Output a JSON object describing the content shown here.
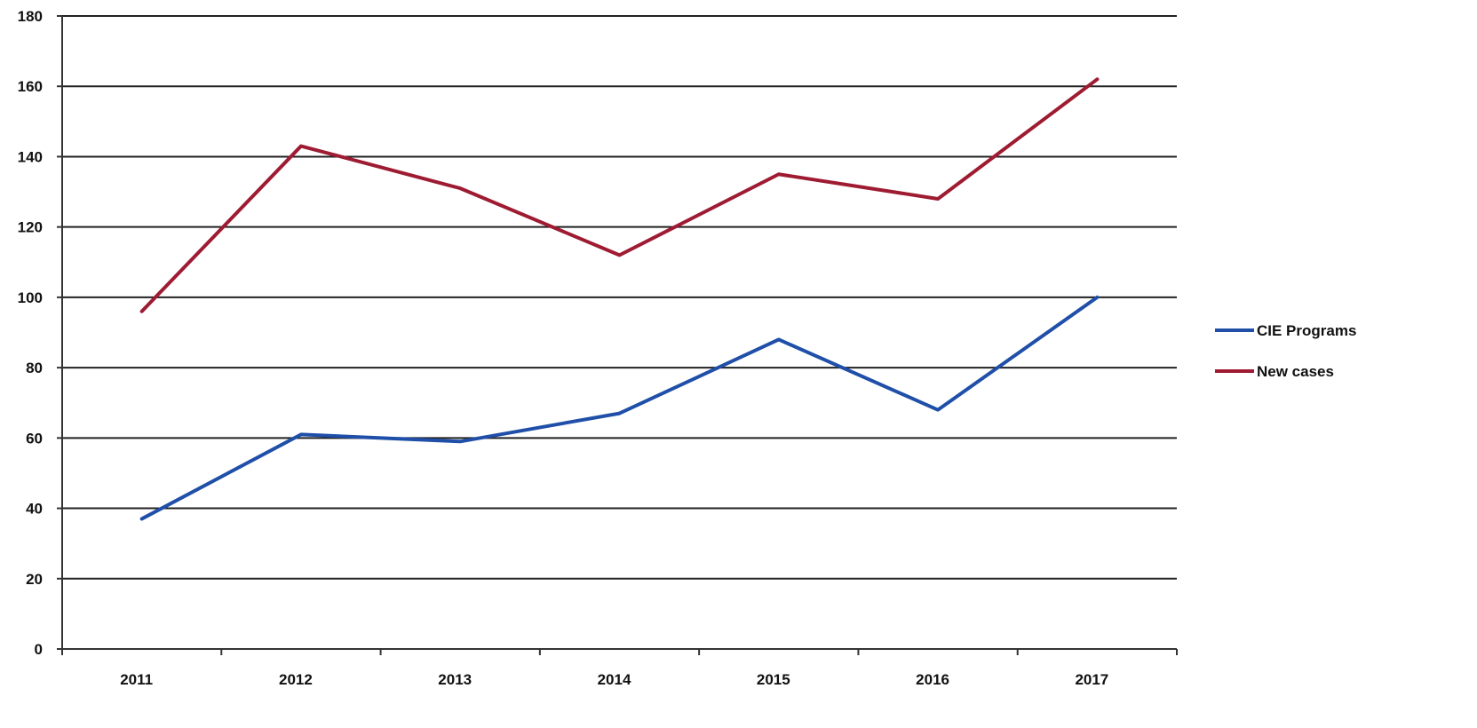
{
  "chart_data": {
    "type": "line",
    "title": "",
    "xlabel": "",
    "ylabel": "",
    "x": [
      "2011",
      "2012",
      "2013",
      "2014",
      "2015",
      "2016",
      "2017"
    ],
    "ylim": [
      0,
      180
    ],
    "yticks": [
      0,
      20,
      40,
      60,
      80,
      100,
      120,
      140,
      160,
      180
    ],
    "grid": true,
    "legend_position": "right",
    "series": [
      {
        "name": "CIE Programs",
        "color": "#1f4fa8",
        "values": [
          37,
          61,
          59,
          67,
          88,
          68,
          100
        ]
      },
      {
        "name": "New cases",
        "color": "#9e1b32",
        "values": [
          96,
          143,
          131,
          112,
          135,
          128,
          162
        ]
      }
    ]
  }
}
